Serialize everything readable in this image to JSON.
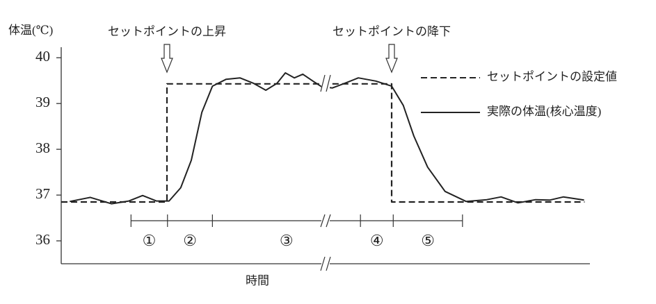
{
  "chart_data": {
    "type": "line",
    "y_label": "体温(℃)",
    "x_label": "時間",
    "ylim": [
      35.5,
      40.2
    ],
    "yticks": [
      36,
      37,
      38,
      39,
      40
    ],
    "xlim": [
      0,
      100
    ],
    "series": [
      {
        "name": "セットポイントの設定値",
        "color": "#222222",
        "dash": true,
        "x": [
          0,
          20,
          20,
          62.5,
          62.5,
          99
        ],
        "values": [
          36.85,
          36.85,
          39.43,
          39.43,
          36.85,
          36.85
        ]
      },
      {
        "name": "実際の体温(核心温度)",
        "color": "#222222",
        "dash": false,
        "x": [
          1.6,
          5.5,
          9.5,
          12.8,
          15.4,
          18.0,
          20.4,
          22.6,
          24.6,
          26.6,
          28.6,
          31.2,
          33.8,
          36.4,
          38.7,
          40.8,
          42.4,
          44.1,
          45.7,
          47.6,
          49.2,
          51.3,
          53.6,
          56.2,
          59.5,
          62.5,
          64.7,
          66.7,
          69.3,
          72.6,
          76.6,
          80.5,
          83.2,
          86.4,
          89.7,
          92.4,
          95.0,
          98.9
        ],
        "values": [
          36.86,
          36.95,
          36.81,
          36.87,
          36.99,
          36.87,
          36.87,
          37.16,
          37.76,
          38.81,
          39.38,
          39.53,
          39.56,
          39.44,
          39.29,
          39.44,
          39.67,
          39.56,
          39.64,
          39.49,
          39.37,
          39.34,
          39.44,
          39.56,
          39.49,
          39.38,
          38.96,
          38.29,
          37.61,
          37.08,
          36.86,
          36.9,
          36.96,
          36.83,
          36.9,
          36.89,
          36.96,
          36.89
        ]
      }
    ],
    "annotations": [
      "セットポイントの上昇",
      "セットポイントの降下"
    ],
    "phases": {
      "labels": [
        "①",
        "②",
        "③",
        "④",
        "⑤"
      ],
      "boundaries": [
        13.2,
        20.1,
        28.6,
        56.6,
        62.8,
        75.9
      ]
    }
  }
}
